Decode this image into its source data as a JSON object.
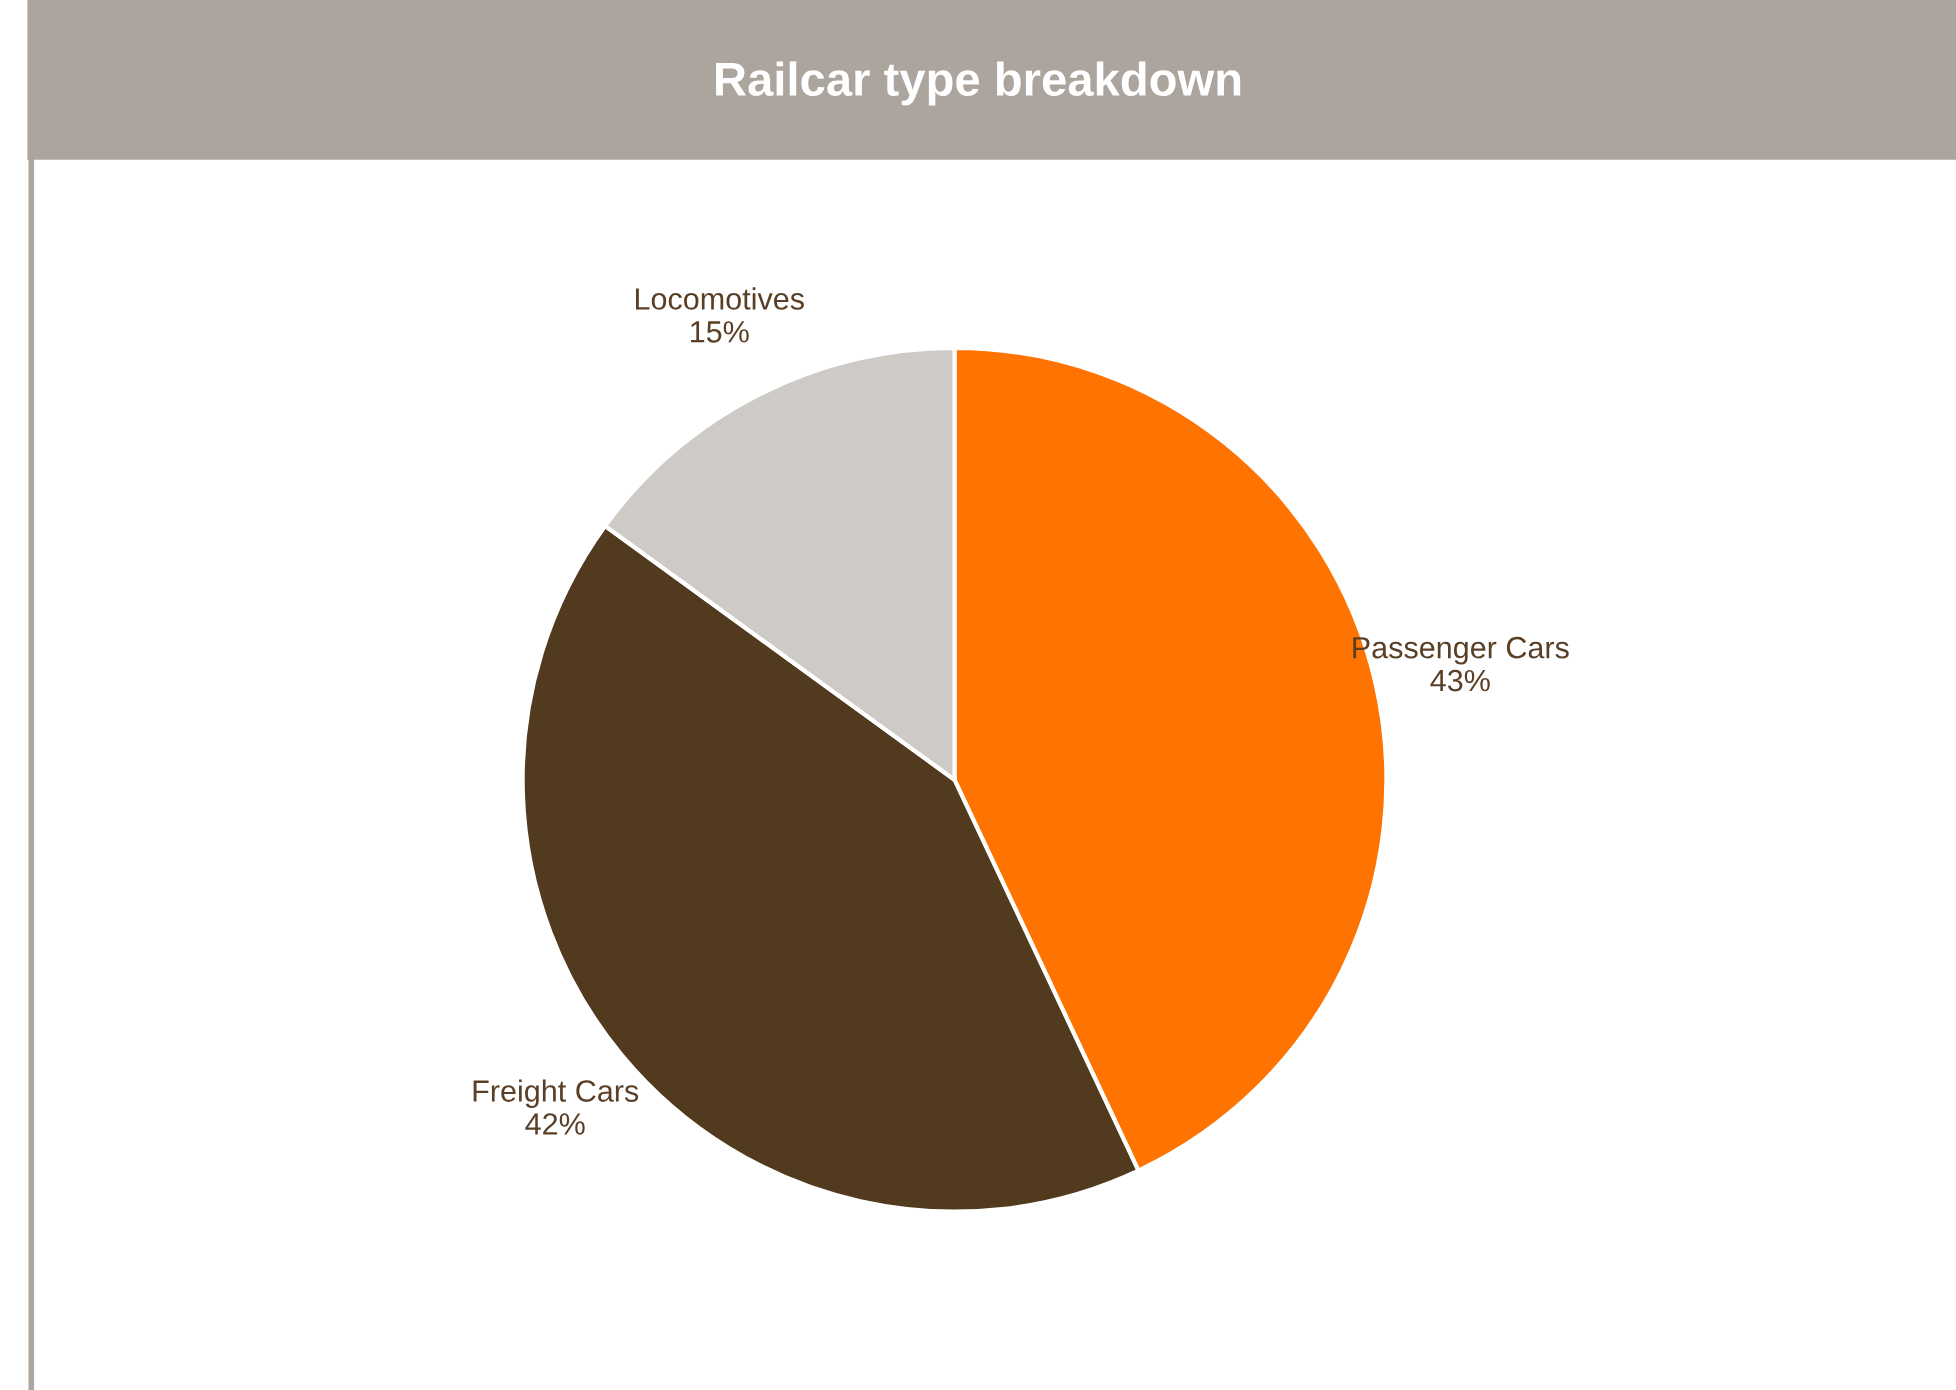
{
  "chart_data": {
    "type": "pie",
    "title": "Railcar type breakdown",
    "categories": [
      "Passenger Cars",
      "Freight Cars",
      "Locomotives"
    ],
    "values": [
      43,
      42,
      15
    ],
    "value_labels": [
      "43%",
      "42%",
      "15%"
    ],
    "colors": [
      "#ff7300",
      "#523a1e",
      "#cecbc6"
    ]
  }
}
